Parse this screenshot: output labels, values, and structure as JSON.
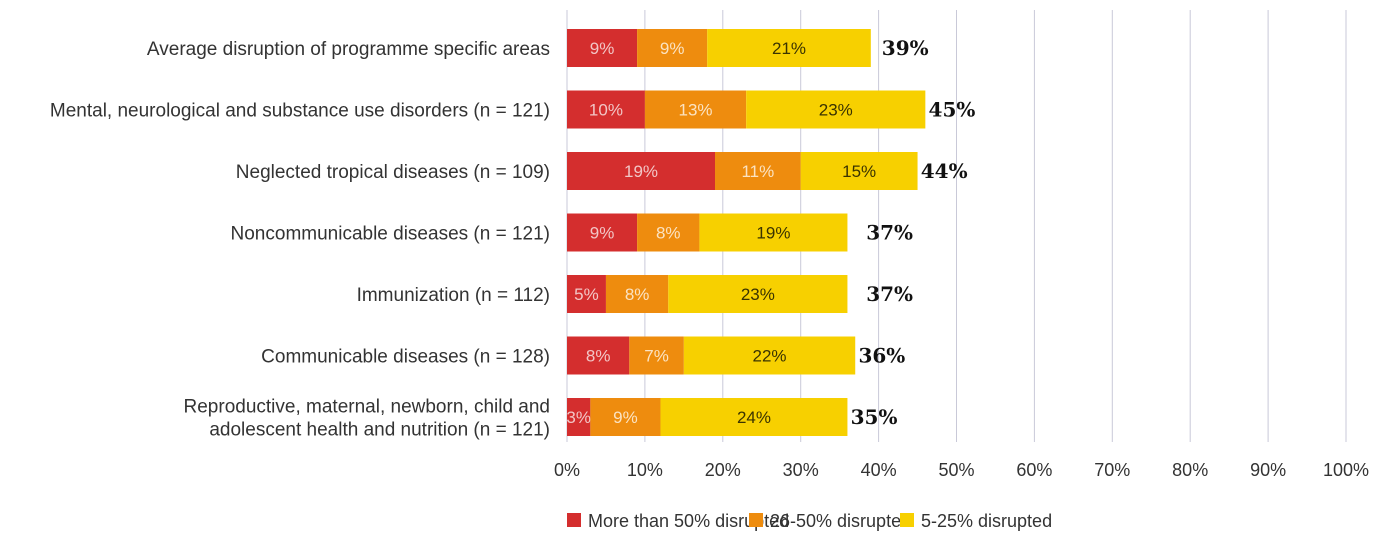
{
  "chart_data": {
    "type": "bar",
    "orientation": "horizontal",
    "stacked": true,
    "title": "",
    "xlabel": "",
    "ylabel": "",
    "xlim": [
      0,
      100
    ],
    "x_ticks": [
      "0%",
      "10%",
      "20%",
      "30%",
      "40%",
      "50%",
      "60%",
      "70%",
      "80%",
      "90%",
      "100%"
    ],
    "grid": "vertical",
    "legend_position": "bottom",
    "categories": [
      "Average disruption of programme specific areas",
      "Mental, neurological and substance use disorders (n = 121)",
      "Neglected tropical diseases (n = 109)",
      "Noncommunicable diseases (n = 121)",
      "Immunization (n = 112)",
      "Communicable diseases (n = 128)",
      "Reproductive, maternal, newborn, child and adolescent health and nutrition (n = 121)"
    ],
    "series": [
      {
        "name": "More than 50% disrupted",
        "color": "#d42e2e",
        "label_color": "#f2c6c6",
        "values": [
          9,
          10,
          19,
          9,
          5,
          8,
          3
        ],
        "labels": [
          "9%",
          "10%",
          "19%",
          "9%",
          "5%",
          "8%",
          "3%"
        ]
      },
      {
        "name": "26-50% disrupted",
        "color": "#ee8c0e",
        "label_color": "#fbe3c2",
        "values": [
          9,
          13,
          11,
          8,
          8,
          7,
          9
        ],
        "labels": [
          "9%",
          "13%",
          "11%",
          "8%",
          "8%",
          "7%",
          "9%"
        ]
      },
      {
        "name": "5-25% disrupted",
        "color": "#f7d000",
        "label_color": "#3a3300",
        "values": [
          21,
          23,
          15,
          19,
          23,
          22,
          24
        ],
        "labels": [
          "21%",
          "23%",
          "15%",
          "19%",
          "23%",
          "22%",
          "24%"
        ]
      }
    ],
    "totals": [
      39,
      45,
      44,
      37,
      37,
      36,
      35
    ],
    "total_labels": [
      "39%",
      "45%",
      "44%",
      "37%",
      "37%",
      "36%",
      "35%"
    ]
  }
}
